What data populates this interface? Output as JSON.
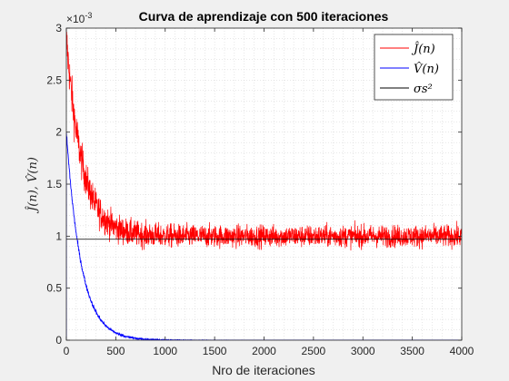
{
  "chart_data": {
    "type": "line",
    "title": "Curva de aprendizaje con 500 iteraciones",
    "xlabel": "Nro de iteraciones",
    "ylabel": "Ĵ(n), V̂(n)",
    "exponent_label": "×10",
    "exponent_power": "-3",
    "xlim": [
      0,
      4000
    ],
    "ylim": [
      0,
      3
    ],
    "y_scale_note": "values ×10^-3",
    "grid": "minor dotted",
    "legend_position": "top-right",
    "x_ticks": [
      "0",
      "500",
      "1000",
      "1500",
      "2000",
      "2500",
      "3000",
      "3500",
      "4000"
    ],
    "y_ticks": [
      "0",
      "0.5",
      "1",
      "1.5",
      "2",
      "2.5",
      "3"
    ],
    "series": [
      {
        "name": "Ĵ(n)",
        "color": "#ff0000",
        "description": "noisy learning curve decaying from ~3 to steady state ~1",
        "initial": 2.9,
        "steady_state": 1.0,
        "decay_constant": 160,
        "noise_amplitude": 0.1,
        "noise_growth_at_start": 0.1
      },
      {
        "name": "V̂(n)",
        "color": "#0000ff",
        "description": "decaying curve from ~2 to ~0",
        "initial": 2.0,
        "steady_state": 0.0,
        "decay_constant": 150,
        "noise_amplitude": 0.03
      },
      {
        "name": "σs²",
        "color": "#000000",
        "description": "constant reference line",
        "value": 0.97
      }
    ]
  }
}
